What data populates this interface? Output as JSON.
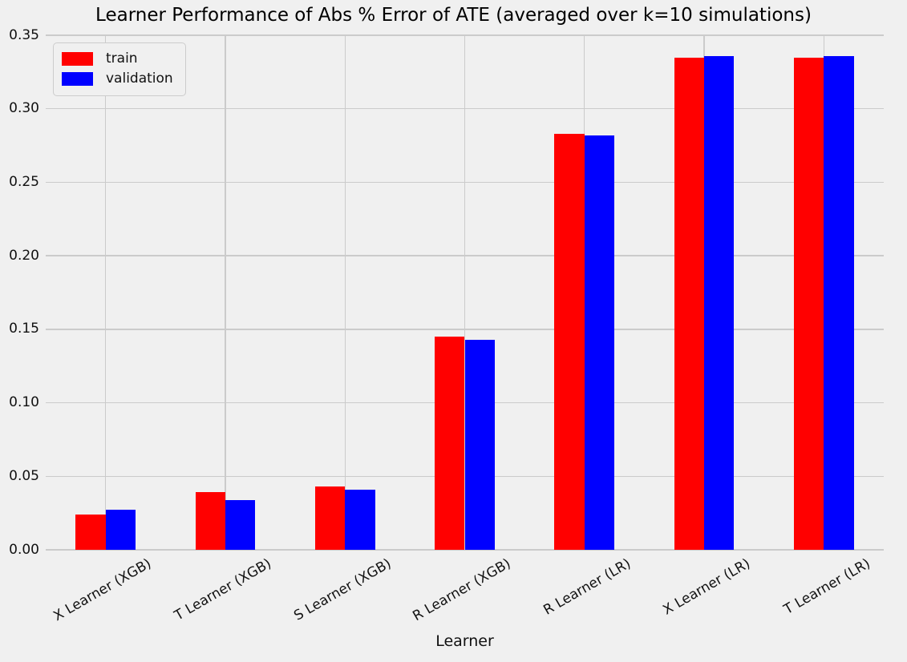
{
  "chart_data": {
    "type": "bar",
    "title": "Learner Performance of Abs % Error of ATE (averaged over k=10 simulations)",
    "xlabel": "Learner",
    "ylabel": "",
    "categories": [
      "X Learner (XGB)",
      "T Learner (XGB)",
      "S Learner (XGB)",
      "R Learner (XGB)",
      "R Learner (LR)",
      "X Learner (LR)",
      "T Learner (LR)"
    ],
    "series": [
      {
        "name": "train",
        "color": "#ff0000",
        "values": [
          0.024,
          0.039,
          0.043,
          0.145,
          0.283,
          0.335,
          0.335
        ]
      },
      {
        "name": "validation",
        "color": "#0000ff",
        "values": [
          0.027,
          0.034,
          0.041,
          0.143,
          0.282,
          0.336,
          0.336
        ]
      }
    ],
    "ylim": [
      0,
      0.35
    ],
    "yticks": [
      "0.00",
      "0.05",
      "0.10",
      "0.15",
      "0.20",
      "0.25",
      "0.30",
      "0.35"
    ],
    "xtick_rotation_deg": 30,
    "grid": true,
    "legend_position": "upper left",
    "colors": {
      "background": "#f0f0f0",
      "gridline": "#cbcbcb",
      "text": "#111111"
    }
  }
}
